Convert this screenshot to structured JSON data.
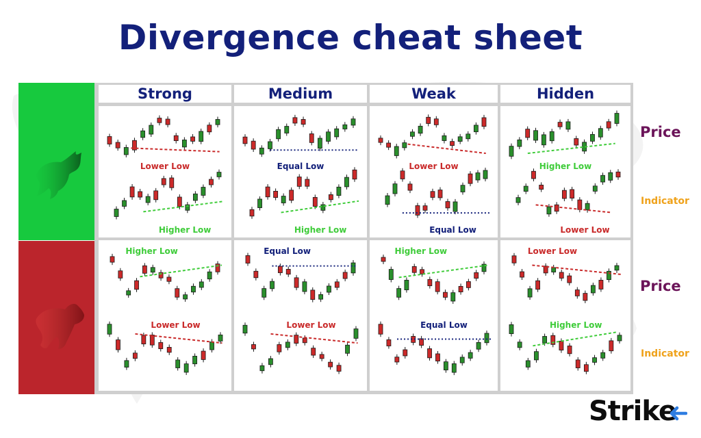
{
  "title": "Divergence cheat sheet",
  "columns": [
    "Strong",
    "Medium",
    "Weak",
    "Hidden"
  ],
  "side_labels": {
    "price": "Price",
    "indicator": "Indicator"
  },
  "brand": "Strike",
  "colors": {
    "title": "#13207a",
    "bull": "#17c93e",
    "bear": "#bb252c",
    "candle_up": "#2a8f2c",
    "candle_down": "#cc2a2a",
    "green_line": "#3fcc3a",
    "red_line": "#c92a2a",
    "blue_line": "#13207a",
    "price_label": "#6b1459",
    "indicator_label": "#efa21b"
  },
  "cells": [
    {
      "name": "bull-strong",
      "top": {
        "shape": [
          3,
          1.5,
          4,
          6,
          2.5,
          3.5,
          5.5
        ],
        "line": {
          "style": "red",
          "from": [
            0.22,
            0.82
          ],
          "to": [
            0.98,
            0.93
          ]
        },
        "label": {
          "text": "Lower Low",
          "color": "red"
        }
      },
      "bottom": {
        "shape": [
          1.5,
          4,
          3,
          5.5,
          2,
          4,
          6
        ],
        "line": {
          "style": "green",
          "from": [
            0.28,
            0.9
          ],
          "to": [
            1.0,
            0.63
          ]
        },
        "label": {
          "text": "Higher Low",
          "color": "green"
        }
      }
    },
    {
      "name": "bull-medium",
      "top": {
        "shape": [
          3,
          1.5,
          4,
          6,
          2.5,
          4,
          5.5
        ],
        "line": {
          "style": "blue",
          "from": [
            0.25,
            0.88
          ],
          "to": [
            1.0,
            0.88
          ]
        },
        "label": {
          "text": "Equal Low",
          "color": "blue"
        }
      },
      "bottom": {
        "shape": [
          1.5,
          4,
          3,
          5.5,
          2,
          4,
          6
        ],
        "line": {
          "style": "green",
          "from": [
            0.3,
            0.92
          ],
          "to": [
            1.0,
            0.62
          ]
        },
        "label": {
          "text": "Higher Low",
          "color": "green"
        }
      }
    },
    {
      "name": "bull-weak",
      "top": {
        "shape": [
          3,
          1.5,
          4,
          6,
          2.5,
          3.5,
          5.5
        ],
        "line": {
          "style": "red",
          "from": [
            0.28,
            0.7
          ],
          "to": [
            0.98,
            0.98
          ]
        },
        "label": {
          "text": "Lower Low",
          "color": "red"
        }
      },
      "bottom": {
        "shape": [
          3,
          6,
          1.5,
          4,
          2,
          5.5,
          6
        ],
        "line": {
          "style": "blue",
          "from": [
            0.18,
            0.93
          ],
          "to": [
            1.0,
            0.93
          ]
        },
        "label": {
          "text": "Equal Low",
          "color": "blue"
        }
      }
    },
    {
      "name": "bull-hidden",
      "top": {
        "shape": [
          1.5,
          4,
          3,
          5.5,
          2,
          4,
          6
        ],
        "line": {
          "style": "green",
          "from": [
            0.18,
            0.98
          ],
          "to": [
            0.95,
            0.68
          ]
        },
        "label": {
          "text": "Higher Low",
          "color": "green"
        }
      },
      "bottom": {
        "shape": [
          3,
          6,
          1.5,
          4,
          2,
          5.5,
          6
        ],
        "line": {
          "style": "red",
          "from": [
            0.2,
            0.72
          ],
          "to": [
            0.9,
            0.92
          ]
        },
        "label": {
          "text": "Lower Low",
          "color": "red"
        }
      }
    },
    {
      "name": "bear-strong",
      "top": {
        "shape": [
          6,
          2,
          5,
          4,
          1.5,
          3,
          5
        ],
        "line": {
          "style": "green",
          "from": [
            0.28,
            0.38
          ],
          "to": [
            1.0,
            0.08
          ]
        },
        "label": {
          "text": "Higher Low",
          "color": "green"
        }
      },
      "bottom": {
        "shape": [
          6,
          2,
          5,
          4,
          1.5,
          3,
          5
        ],
        "line": {
          "style": "red",
          "from": [
            0.25,
            0.05
          ],
          "to": [
            0.98,
            0.28
          ]
        },
        "label": {
          "text": "Lower Low",
          "color": "red"
        }
      }
    },
    {
      "name": "bear-medium",
      "top": {
        "shape": [
          6,
          2,
          5,
          3,
          1.5,
          3,
          5
        ],
        "line": {
          "style": "blue",
          "from": [
            0.25,
            0.1
          ],
          "to": [
            1.0,
            0.1
          ]
        },
        "label": {
          "text": "Equal Low",
          "color": "blue"
        }
      },
      "bottom": {
        "shape": [
          6,
          1.5,
          4,
          5,
          3,
          1.5,
          5.5
        ],
        "line": {
          "style": "red",
          "from": [
            0.25,
            0.05
          ],
          "to": [
            0.98,
            0.28
          ]
        },
        "label": {
          "text": "Lower Low",
          "color": "red"
        }
      }
    },
    {
      "name": "bear-weak",
      "top": {
        "shape": [
          6,
          2,
          5,
          3,
          1.5,
          3,
          5
        ],
        "line": {
          "style": "green",
          "from": [
            0.18,
            0.4
          ],
          "to": [
            1.0,
            0.08
          ]
        },
        "label": {
          "text": "Higher Low",
          "color": "green"
        }
      },
      "bottom": {
        "shape": [
          6,
          2.5,
          5,
          3,
          1.5,
          3,
          5
        ],
        "line": {
          "style": "blue",
          "from": [
            0.18,
            0.18
          ],
          "to": [
            1.0,
            0.18
          ]
        },
        "label": {
          "text": "Equal Low",
          "color": "blue"
        }
      }
    },
    {
      "name": "bear-hidden",
      "top": {
        "shape": [
          6,
          2,
          5,
          4,
          1.5,
          3,
          5
        ],
        "line": {
          "style": "red",
          "from": [
            0.2,
            0.08
          ],
          "to": [
            1.0,
            0.32
          ]
        },
        "label": {
          "text": "Lower Low",
          "color": "red"
        }
      },
      "bottom": {
        "shape": [
          6,
          2,
          5,
          4,
          1.5,
          3,
          5
        ],
        "line": {
          "style": "green",
          "from": [
            0.22,
            0.35
          ],
          "to": [
            0.95,
            0.0
          ]
        },
        "label": {
          "text": "Higher Low",
          "color": "green"
        }
      }
    }
  ]
}
